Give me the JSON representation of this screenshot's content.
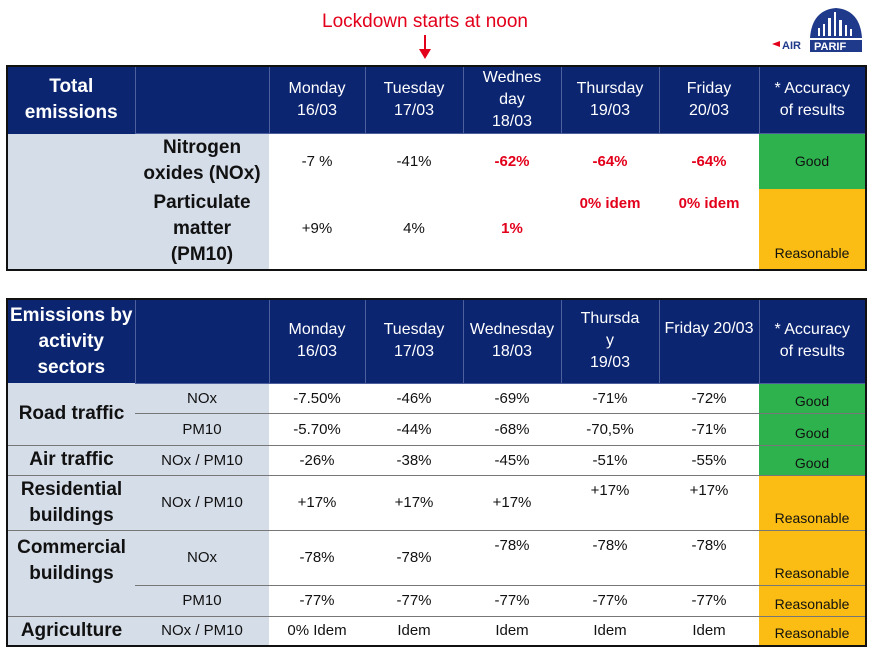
{
  "annotation": {
    "text": "Lockdown starts at noon"
  },
  "logo": {
    "text": "AIRPARIF",
    "part1": "AIR",
    "part2": "PARIF"
  },
  "colors": {
    "header": "#0c2571",
    "label_bg": "#d5dde9",
    "good": "#2eb24d",
    "reasonable": "#fbbd13",
    "highlight": "#e3001b"
  },
  "total": {
    "title_l1": "Total",
    "title_l2": "emissions",
    "days": [
      {
        "l1": "Monday",
        "l2": "16/03"
      },
      {
        "l1": "Tuesday",
        "l2": "17/03"
      },
      {
        "l1": "Wednes",
        "l2": "day",
        "l3": "18/03"
      },
      {
        "l1": "Thursday",
        "l2": "19/03"
      },
      {
        "l1": "Friday",
        "l2": "20/03"
      }
    ],
    "accuracy_l1": "* Accuracy",
    "accuracy_l2": "of results",
    "rows": [
      {
        "l1": "Nitrogen",
        "l2": "oxides (NOx)",
        "values": [
          "-7 %",
          "-41%",
          "-62%",
          "-64%",
          "-64%"
        ],
        "accuracy": "Good"
      },
      {
        "l1": "Particulate",
        "l2": "matter",
        "l3": "(PM10)",
        "values": [
          "+9%",
          "4%",
          "1%",
          "0% idem",
          "0% idem"
        ],
        "accuracy": "Reasonable"
      }
    ]
  },
  "sectors": {
    "title_l1": "Emissions by",
    "title_l2": "activity",
    "title_l3": "sectors",
    "days": [
      {
        "l1": "Monday",
        "l2": "16/03"
      },
      {
        "l1": "Tuesday",
        "l2": "17/03"
      },
      {
        "l1": "Wednesday",
        "l2": "18/03"
      },
      {
        "l1": "Thursda",
        "l2": "y",
        "l3": "19/03"
      },
      {
        "l1": "Friday  20/03"
      }
    ],
    "accuracy_l1": "* Accuracy",
    "accuracy_l2": "of results",
    "rows": [
      {
        "sector": "Road traffic",
        "pollutant": "NOx",
        "values": [
          "-7.50%",
          "-46%",
          "-69%",
          "-71%",
          "-72%"
        ],
        "accuracy": "Good"
      },
      {
        "pollutant": "PM10",
        "values": [
          "-5.70%",
          "-44%",
          "-68%",
          "-70,5%",
          "-71%"
        ],
        "accuracy": "Good"
      },
      {
        "sector": "Air traffic",
        "pollutant": "NOx / PM10",
        "values": [
          "-26%",
          "-38%",
          "-45%",
          "-51%",
          "-55%"
        ],
        "accuracy": "Good"
      },
      {
        "sector_l1": "Residential",
        "sector_l2": "buildings",
        "pollutant": "NOx / PM10",
        "values": [
          "+17%",
          "+17%",
          "+17%",
          "+17%",
          "+17%"
        ],
        "accuracy": "Reasonable"
      },
      {
        "sector_l1": "Commercial",
        "sector_l2": "buildings",
        "pollutant": "NOx",
        "values": [
          "-78%",
          "-78%",
          "-78%",
          "-78%",
          "-78%"
        ],
        "accuracy": "Reasonable"
      },
      {
        "pollutant": "PM10",
        "values": [
          "-77%",
          "-77%",
          "-77%",
          "-77%",
          "-77%"
        ],
        "accuracy": "Reasonable"
      },
      {
        "sector": "Agriculture",
        "pollutant": "NOx / PM10",
        "values": [
          "0% Idem",
          "Idem",
          "Idem",
          "Idem",
          "Idem"
        ],
        "accuracy": "Reasonable"
      }
    ]
  }
}
